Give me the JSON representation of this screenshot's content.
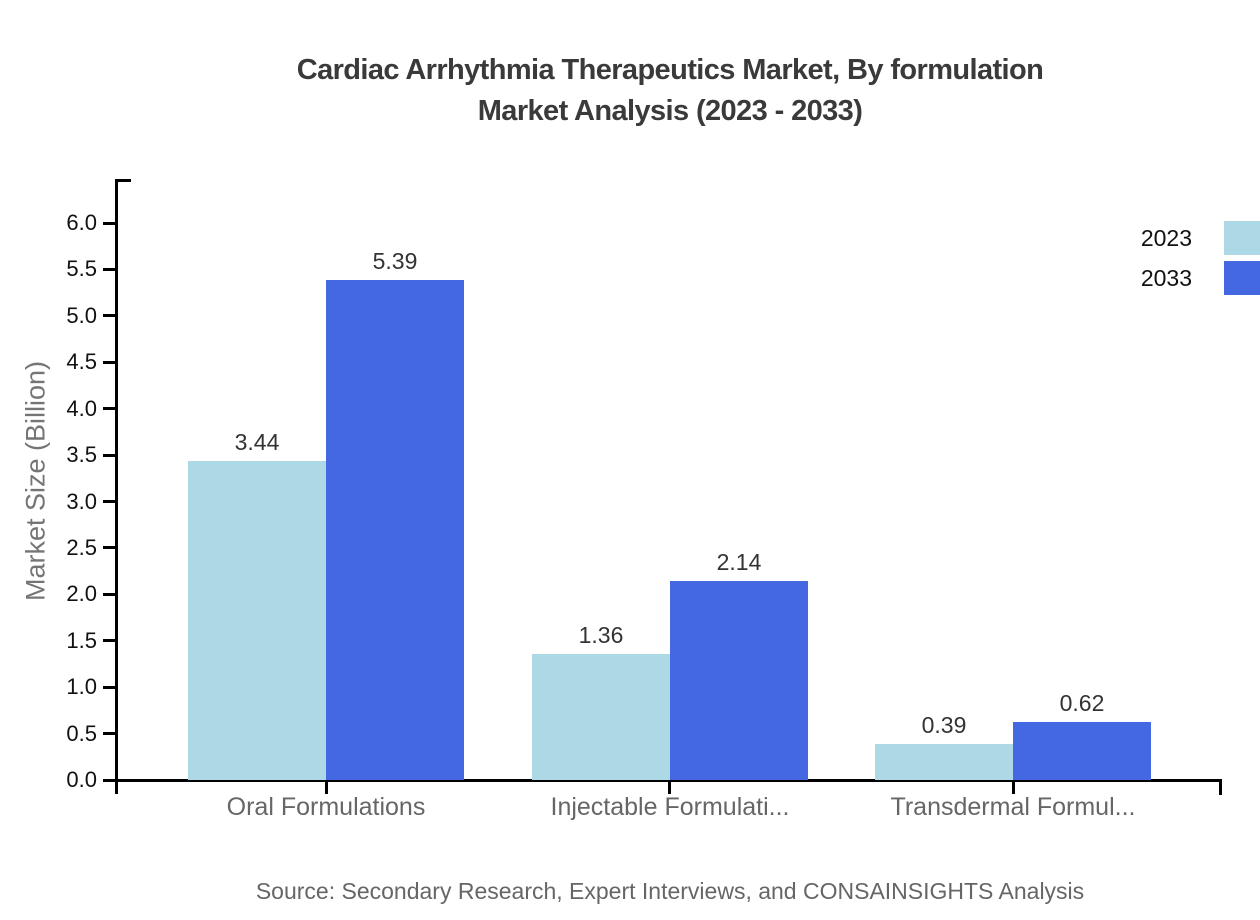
{
  "page": {
    "background": "#ffffff"
  },
  "title": {
    "line1": "Cardiac Arrhythmia Therapeutics Market, By formulation",
    "line2": "Market Analysis (2023 - 2033)"
  },
  "source_note": "Source: Secondary Research, Expert Interviews, and CONSAINSIGHTS Analysis",
  "chart_data": {
    "type": "bar",
    "title": "Cardiac Arrhythmia Therapeutics Market, By formulation Market Analysis (2023 - 2033)",
    "xlabel": "",
    "ylabel": "Market Size (Billion)",
    "categories": [
      "Oral Formulations",
      "Injectable Formulati...",
      "Transdermal Formul..."
    ],
    "series": [
      {
        "name": "2023",
        "color": "#ADD8E6",
        "values": [
          3.44,
          1.36,
          0.39
        ]
      },
      {
        "name": "2033",
        "color": "#4368E2",
        "values": [
          5.39,
          2.14,
          0.62
        ]
      }
    ],
    "value_labels": [
      "3.44",
      "5.39",
      "1.36",
      "2.14",
      "0.39",
      "0.62"
    ],
    "ylim": [
      0.0,
      6.5
    ],
    "ytick_labels": [
      "0.0",
      "0.5",
      "1.0",
      "1.5",
      "2.0",
      "2.5",
      "3.0",
      "3.5",
      "4.0",
      "4.5",
      "5.0",
      "5.5",
      "6.0"
    ],
    "grid": false,
    "legend_position": "top-right",
    "axis_color": "#000000",
    "text_colors": {
      "title": "#3a3a3a",
      "tick_labels": "#111111",
      "category_labels": "#666666",
      "value_labels": "#333333",
      "y_axis_title": "#757575",
      "source": "#666666"
    }
  }
}
